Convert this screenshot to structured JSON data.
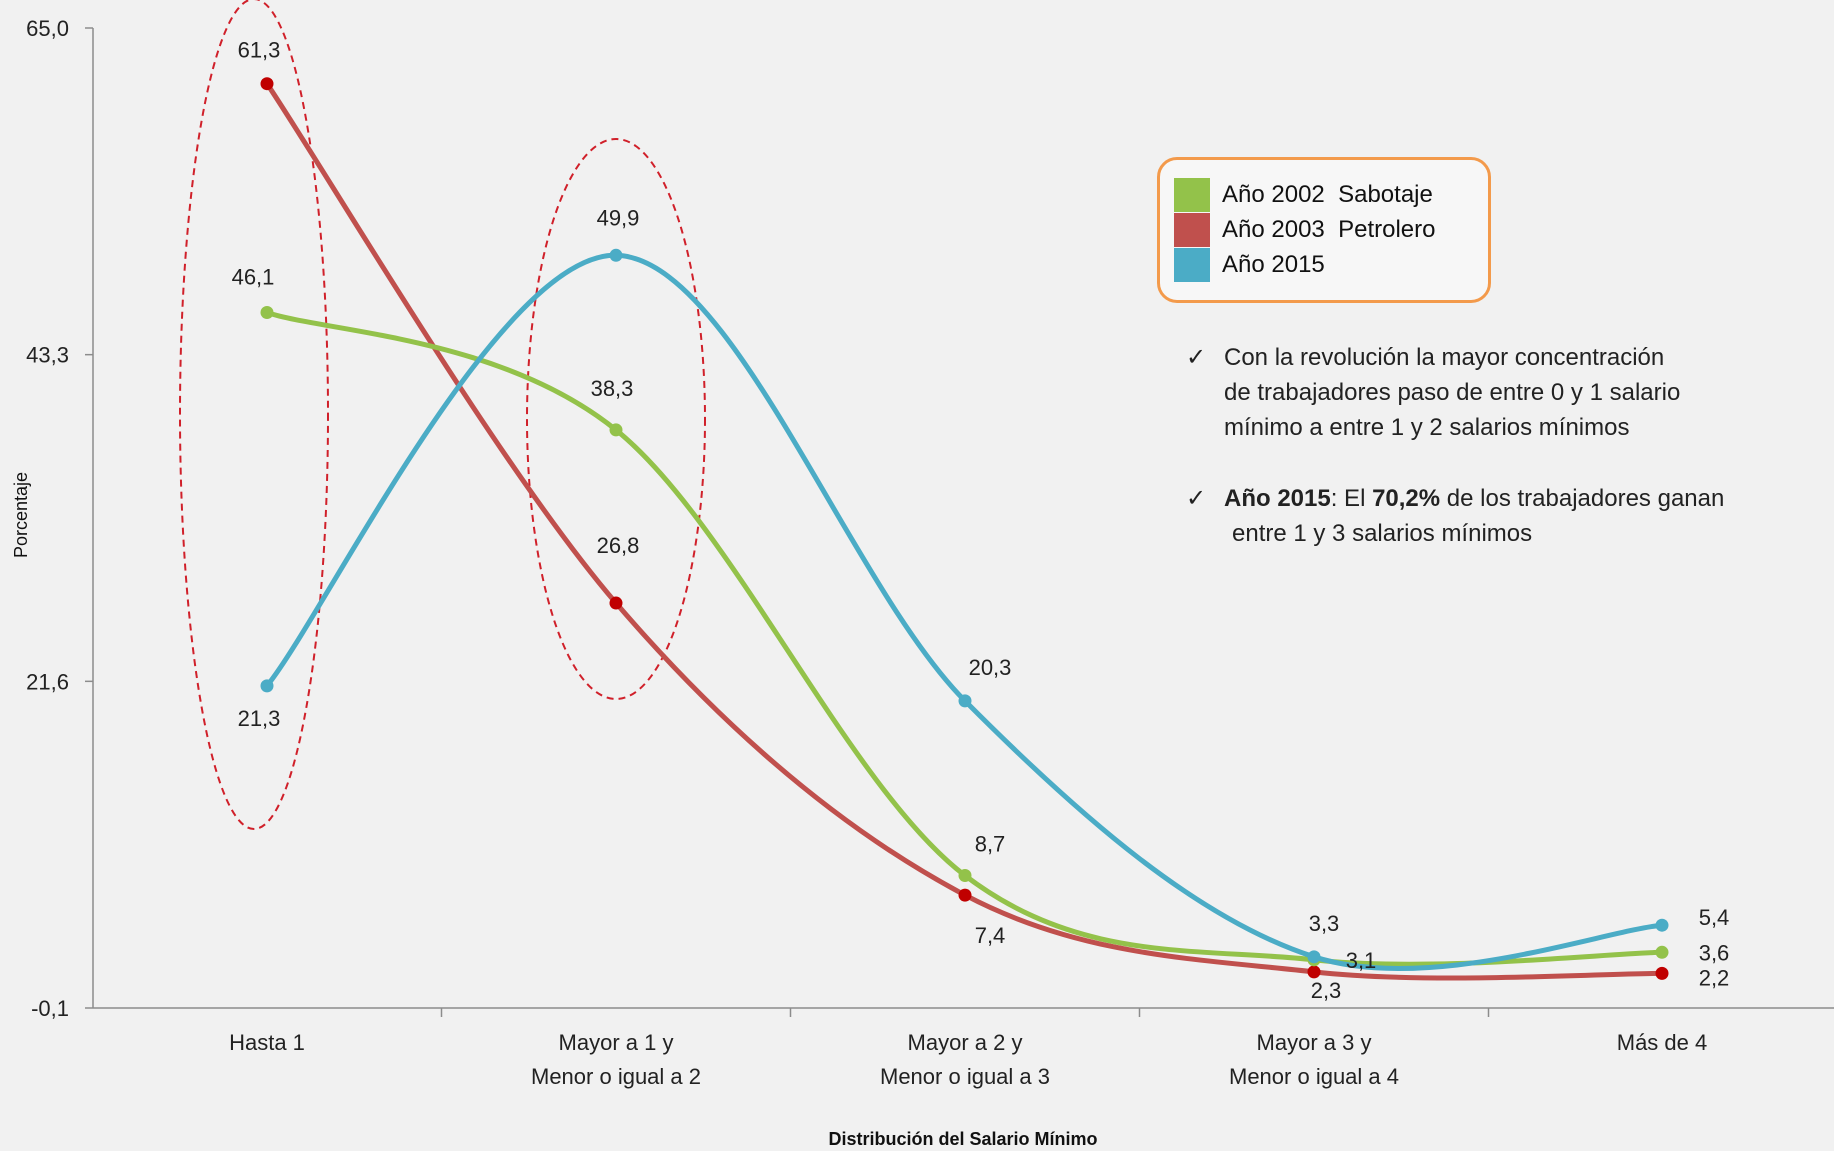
{
  "chart_data": {
    "type": "line",
    "xlabel": "Distribución del Salario Mínimo",
    "ylabel": "Porcentaje",
    "yticks": [
      "65,0",
      "43,3",
      "21,6",
      "-0,1"
    ],
    "ylim": [
      -0.1,
      65.0
    ],
    "grid": false,
    "smooth": true,
    "legend_position": "top-right",
    "categories": [
      [
        "Hasta 1"
      ],
      [
        "Mayor a 1 y",
        "Menor o igual a 2"
      ],
      [
        "Mayor a 2 y",
        "Menor o igual a 3"
      ],
      [
        "Mayor a 3 y",
        "Menor o igual a 4"
      ],
      [
        "Más de 4"
      ]
    ],
    "series": [
      {
        "name": "Año 2002  Sabotaje",
        "color": "#93c24a",
        "values": [
          46.1,
          38.3,
          8.7,
          3.1,
          3.6
        ],
        "labels": [
          "46,1",
          "38,3",
          "8,7",
          "3,1",
          "3,6"
        ]
      },
      {
        "name": "Año 2003  Petrolero",
        "color": "#c0504d",
        "values": [
          61.3,
          26.8,
          7.4,
          2.3,
          2.2
        ],
        "labels": [
          "61,3",
          "26,8",
          "7,4",
          "2,3",
          "2,2"
        ]
      },
      {
        "name": "Año 2015",
        "color": "#4bacc6",
        "values": [
          21.3,
          49.9,
          20.3,
          3.3,
          5.4
        ],
        "labels": [
          "21,3",
          "49,9",
          "20,3",
          "3,3",
          "5,4"
        ]
      }
    ],
    "highlight_color": "#d0202a"
  },
  "notes": {
    "check_icon": "✓",
    "note1": [
      "Con la revolución la mayor concentración",
      "de trabajadores paso de entre 0 y 1 salario",
      "mínimo a entre 1 y 2 salarios mínimos"
    ],
    "note2": {
      "bold1": "Año 2015",
      "text1": ": El ",
      "bold2": "70,2%",
      "text2": " de los trabajadores ganan",
      "line2": "entre 1 y 3 salarios mínimos"
    }
  }
}
